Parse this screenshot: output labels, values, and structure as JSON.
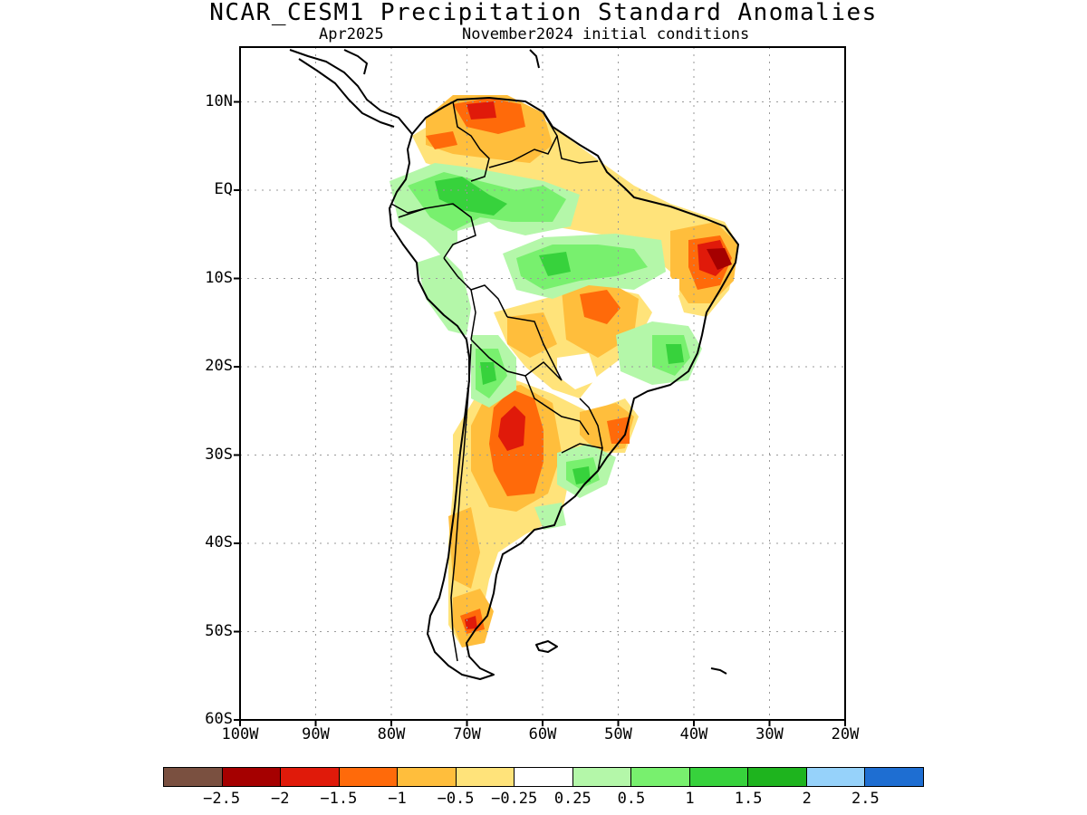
{
  "title": "NCAR_CESM1 Precipitation Standard Anomalies",
  "subtitle_left": "Apr2025",
  "subtitle_right": "November2024 initial conditions",
  "map": {
    "region": "South America",
    "variable": "precipitation standard anomaly",
    "lon_range": [
      -100,
      -20
    ],
    "lat_range": [
      -60,
      5
    ],
    "grid": true,
    "y_ticks": [
      {
        "lat": 10,
        "label": "10N"
      },
      {
        "lat": 0,
        "label": "EQ"
      },
      {
        "lat": -10,
        "label": "10S"
      },
      {
        "lat": -20,
        "label": "20S"
      },
      {
        "lat": -30,
        "label": "30S"
      },
      {
        "lat": -40,
        "label": "40S"
      },
      {
        "lat": -50,
        "label": "50S"
      },
      {
        "lat": -60,
        "label": "60S"
      }
    ],
    "x_ticks": [
      {
        "lon": -100,
        "label": "100W"
      },
      {
        "lon": -90,
        "label": "90W"
      },
      {
        "lon": -80,
        "label": "80W"
      },
      {
        "lon": -70,
        "label": "70W"
      },
      {
        "lon": -60,
        "label": "60W"
      },
      {
        "lon": -50,
        "label": "50W"
      },
      {
        "lon": -40,
        "label": "40W"
      },
      {
        "lon": -30,
        "label": "30W"
      },
      {
        "lon": -20,
        "label": "20W"
      }
    ],
    "anomaly_regions": [
      {
        "name": "northern-venezuela-dry",
        "level": -1.5,
        "lon": -68,
        "lat": 8.5
      },
      {
        "name": "colombia-amazon-wet",
        "level": 1.5,
        "lon": -70,
        "lat": -1
      },
      {
        "name": "central-amazon-wet",
        "level": 1,
        "lon": -56,
        "lat": -7
      },
      {
        "name": "northeast-brazil-dry",
        "level": -2,
        "lon": -38,
        "lat": -7
      },
      {
        "name": "central-brazil-dry",
        "level": -1,
        "lon": -53,
        "lat": -13
      },
      {
        "name": "peru-andes-wet",
        "level": 1,
        "lon": -73,
        "lat": -15
      },
      {
        "name": "southeast-brazil-wet",
        "level": 1,
        "lon": -42,
        "lat": -18
      },
      {
        "name": "northern-argentina-dry",
        "level": -2,
        "lon": -64,
        "lat": -27
      },
      {
        "name": "central-argentina-dry",
        "level": -1,
        "lon": -64,
        "lat": -35
      },
      {
        "name": "uruguay-wet",
        "level": 1.5,
        "lon": -55,
        "lat": -32
      },
      {
        "name": "patagonia-dry",
        "level": -1.5,
        "lon": -69,
        "lat": -49
      }
    ]
  },
  "colorbar": {
    "colors": [
      "#7a5040",
      "#a50000",
      "#e01a0a",
      "#ff6a0a",
      "#ffbe3c",
      "#ffe37a",
      "#ffffff",
      "#b4f7a9",
      "#78f06e",
      "#37d23c",
      "#1eb41e",
      "#96d2fa",
      "#1e6ed2"
    ],
    "labels": [
      "−2.5",
      "−2",
      "−1.5",
      "−1",
      "−0.5",
      "−0.25",
      "0.25",
      "0.5",
      "1",
      "1.5",
      "2",
      "2.5"
    ]
  }
}
